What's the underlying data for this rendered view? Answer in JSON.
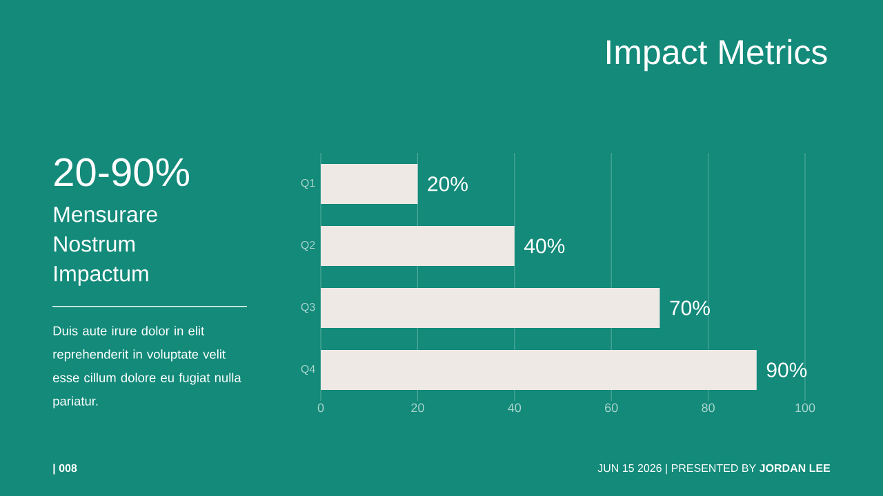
{
  "chart_data": {
    "type": "bar",
    "orientation": "horizontal",
    "title": "Impact Metrics",
    "categories": [
      "Q1",
      "Q2",
      "Q3",
      "Q4"
    ],
    "values": [
      20,
      40,
      70,
      90
    ],
    "value_labels": [
      "20%",
      "40%",
      "70%",
      "90%"
    ],
    "color": "#efe9e6",
    "xlim": [
      0,
      100
    ],
    "xticks": [
      0,
      20,
      40,
      60,
      80,
      100
    ],
    "grid": "x",
    "annotations": [
      "20-90%",
      "Mensurare Nostrum Impactum",
      "Duis aute irure dolor in elit reprehenderit in voluptate velit esse cillum dolore eu fugiat nulla pariatur.",
      "| 008",
      "JUN 15 2026  |  PRESENTED BY **JORDAN LEE**"
    ]
  }
}
